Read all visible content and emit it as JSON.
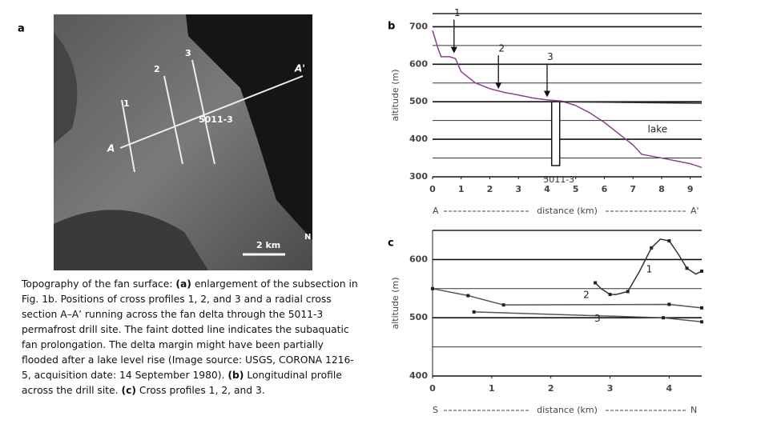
{
  "panel_a": {
    "label": "a",
    "labels": [
      "1",
      "2",
      "3",
      "A'",
      "A",
      "5011-3"
    ],
    "scale": "2 km",
    "north": "N"
  },
  "caption": [
    {
      "text": "Topography of the fan surface: "
    },
    {
      "text": "(a)",
      "bold": true
    },
    {
      "text": " enlargement of the subsection in Fig. 1b. Positions of cross profiles 1, 2, and 3 and a radial cross section A–A’ running across the fan delta through the 5011-3 permafrost drill site. The faint dotted line indicates the subaquatic fan prolongation. The delta margin might have been partially flooded after a lake level rise (Image source: USGS, CORONA 1216-5, acquisition date: 14 September 1980). "
    },
    {
      "text": "(b)",
      "bold": true
    },
    {
      "text": " Longitudinal profile across the drill site. "
    },
    {
      "text": "(c)",
      "bold": true
    },
    {
      "text": " Cross profiles 1, 2, and 3."
    }
  ],
  "chart_data": [
    {
      "type": "line",
      "panel": "b",
      "ylabel": "altitude (m)",
      "xlabel": "distance (km)",
      "xlabel_start": "A",
      "xlabel_end": "A'",
      "xlim": [
        0,
        9.4
      ],
      "xticks": [
        0,
        1,
        2,
        3,
        4,
        5,
        6,
        7,
        8,
        9
      ],
      "ylim": [
        300,
        735
      ],
      "yticks": [
        300,
        400,
        500,
        600,
        700
      ],
      "minor_grid": [
        350,
        450,
        550,
        650
      ],
      "series": [
        {
          "color": "#8a3f8f",
          "x": [
            0,
            0.2,
            0.3,
            0.6,
            0.8,
            1.0,
            1.5,
            2,
            2.5,
            3,
            3.5,
            4,
            4.5,
            5,
            5.5,
            6,
            6.5,
            7,
            7.3,
            8,
            9,
            9.4
          ],
          "values": [
            690,
            640,
            620,
            620,
            615,
            580,
            550,
            535,
            525,
            518,
            510,
            505,
            502,
            490,
            470,
            445,
            415,
            385,
            360,
            350,
            335,
            325
          ]
        },
        {
          "name": "lake",
          "color": "#333333",
          "x": [
            4.3,
            9.4
          ],
          "values": [
            500,
            496
          ]
        }
      ],
      "arrows": [
        {
          "label": "1",
          "x": 0.75,
          "y": 625
        },
        {
          "label": "2",
          "x": 2.3,
          "y": 530
        },
        {
          "label": "3",
          "x": 4.0,
          "y": 508
        }
      ],
      "drill_site": {
        "label": "5011-3",
        "x": 4.3,
        "top": 500,
        "bottom": 330
      }
    },
    {
      "type": "line",
      "panel": "c",
      "ylabel": "altitude (m)",
      "xlabel": "distance (km)",
      "xlabel_start": "S",
      "xlabel_end": "N",
      "xlim": [
        0,
        4.55
      ],
      "xticks": [
        0,
        1,
        2,
        3,
        4
      ],
      "ylim": [
        400,
        650
      ],
      "yticks": [
        400,
        500,
        600
      ],
      "minor_grid": [
        450,
        550
      ],
      "markers": true,
      "series": [
        {
          "name": "1",
          "color": "#333333",
          "x": [
            2.75,
            2.85,
            3.0,
            3.1,
            3.3,
            3.5,
            3.7,
            3.85,
            4.0,
            4.15,
            4.3,
            4.45,
            4.55
          ],
          "values": [
            560,
            550,
            540,
            540,
            545,
            580,
            620,
            635,
            632,
            610,
            585,
            575,
            580
          ]
        },
        {
          "name": "2",
          "color": "#555555",
          "x": [
            0,
            0.6,
            1.2,
            4.0,
            4.55
          ],
          "values": [
            550,
            538,
            522,
            523,
            517
          ]
        },
        {
          "name": "3",
          "color": "#555555",
          "x": [
            0.7,
            3.9,
            4.55
          ],
          "values": [
            510,
            500,
            493
          ]
        }
      ]
    }
  ]
}
